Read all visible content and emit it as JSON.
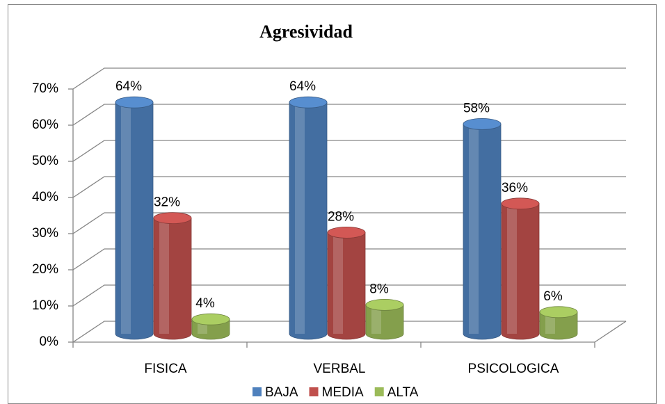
{
  "chart_data": {
    "type": "bar3d",
    "title": "Agresividad",
    "categories": [
      "FISICA",
      "VERBAL",
      "PSICOLOGICA"
    ],
    "series": [
      {
        "name": "BAJA",
        "color": "#4f81bd",
        "values": [
          64,
          64,
          58
        ],
        "value_labels": [
          "64%",
          "64%",
          "58%"
        ]
      },
      {
        "name": "MEDIA",
        "color": "#c0504d",
        "values": [
          32,
          28,
          36
        ],
        "value_labels": [
          "32%",
          "28%",
          "36%"
        ]
      },
      {
        "name": "ALTA",
        "color": "#9bbb59",
        "values": [
          4,
          8,
          6
        ],
        "value_labels": [
          "4%",
          "8%",
          "6%"
        ]
      }
    ],
    "ylim": [
      0,
      70
    ],
    "yticks": [
      {
        "value": 0,
        "label": "0%"
      },
      {
        "value": 10,
        "label": "10%"
      },
      {
        "value": 20,
        "label": "20%"
      },
      {
        "value": 30,
        "label": "30%"
      },
      {
        "value": 40,
        "label": "40%"
      },
      {
        "value": 50,
        "label": "50%"
      },
      {
        "value": 60,
        "label": "60%"
      },
      {
        "value": 70,
        "label": "70%"
      }
    ],
    "grid": true,
    "legend": "bottom"
  }
}
